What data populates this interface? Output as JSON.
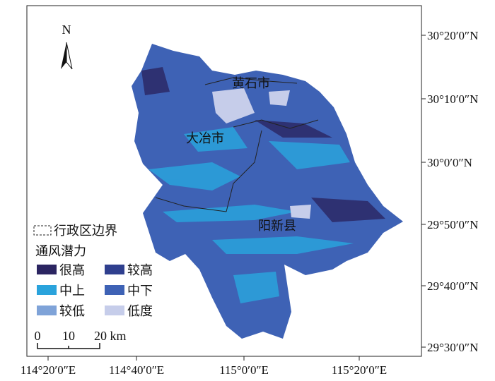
{
  "north": "N",
  "places": [
    "黄石市",
    "大冶市",
    "阳新县"
  ],
  "legend": {
    "boundary": "行政区边界",
    "title": "通风潜力",
    "items": [
      {
        "label": "很高",
        "color": "#2b2561"
      },
      {
        "label": "较高",
        "color": "#2f3f8e"
      },
      {
        "label": "中上",
        "color": "#2aa3dc"
      },
      {
        "label": "中下",
        "color": "#3e62b5"
      },
      {
        "label": "较低",
        "color": "#7fa3d8"
      },
      {
        "label": "低度",
        "color": "#c6cdea"
      }
    ]
  },
  "scale": [
    "0",
    "10",
    "20 km"
  ],
  "lat_labels": [
    "30°20′0″N",
    "30°10′0″N",
    "30°0′0″N",
    "29°50′0″N",
    "29°40′0″N",
    "29°30′0″N"
  ],
  "lon_labels": [
    "114°20′0″E",
    "114°40′0″E",
    "115°0′0″E",
    "115°20′0″E"
  ]
}
